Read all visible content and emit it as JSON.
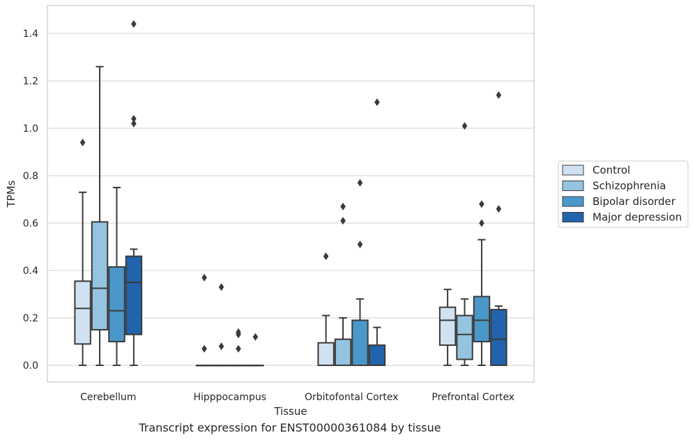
{
  "chart_data": {
    "type": "box",
    "xlabel": "Tissue",
    "ylabel": "TPMs",
    "ylim": [
      -0.07,
      1.52
    ],
    "yticks": [
      0.0,
      0.2,
      0.4,
      0.6,
      0.8,
      1.0,
      1.2,
      1.4
    ],
    "ytick_labels": [
      "0.0",
      "0.2",
      "0.4",
      "0.6",
      "0.8",
      "1.0",
      "1.2",
      "1.4"
    ],
    "grid": true,
    "legend_position": "right",
    "categories": [
      "Cerebellum",
      "Hipppocampus",
      "Orbitofontal Cortex",
      "Prefrontal Cortex"
    ],
    "series": [
      {
        "name": "Control",
        "color": "#d0e1f2",
        "boxes": [
          {
            "whislo": 0.0,
            "q1": 0.09,
            "med": 0.24,
            "q3": 0.355,
            "whishi": 0.73,
            "fliers": [
              0.94
            ]
          },
          {
            "whislo": 0.0,
            "q1": 0.0,
            "med": 0.0,
            "q3": 0.0,
            "whishi": 0.0,
            "fliers": [
              0.07,
              0.37
            ]
          },
          {
            "whislo": 0.0,
            "q1": 0.0,
            "med": 0.0,
            "q3": 0.095,
            "whishi": 0.21,
            "fliers": [
              0.46
            ]
          },
          {
            "whislo": 0.0,
            "q1": 0.085,
            "med": 0.19,
            "q3": 0.245,
            "whishi": 0.32,
            "fliers": []
          }
        ]
      },
      {
        "name": "Schizophrenia",
        "color": "#94c4df",
        "boxes": [
          {
            "whislo": 0.0,
            "q1": 0.15,
            "med": 0.325,
            "q3": 0.605,
            "whishi": 1.26,
            "fliers": []
          },
          {
            "whislo": 0.0,
            "q1": 0.0,
            "med": 0.0,
            "q3": 0.0,
            "whishi": 0.0,
            "fliers": [
              0.08,
              0.33
            ]
          },
          {
            "whislo": 0.0,
            "q1": 0.0,
            "med": 0.0,
            "q3": 0.11,
            "whishi": 0.2,
            "fliers": [
              0.61,
              0.67
            ]
          },
          {
            "whislo": 0.0,
            "q1": 0.025,
            "med": 0.13,
            "q3": 0.21,
            "whishi": 0.28,
            "fliers": [
              1.01
            ]
          }
        ]
      },
      {
        "name": "Bipolar disorder",
        "color": "#4a98c9",
        "boxes": [
          {
            "whislo": 0.0,
            "q1": 0.1,
            "med": 0.23,
            "q3": 0.415,
            "whishi": 0.75,
            "fliers": []
          },
          {
            "whislo": 0.0,
            "q1": 0.0,
            "med": 0.0,
            "q3": 0.0,
            "whishi": 0.0,
            "fliers": [
              0.07,
              0.13,
              0.14
            ]
          },
          {
            "whislo": 0.0,
            "q1": 0.0,
            "med": 0.0,
            "q3": 0.19,
            "whishi": 0.28,
            "fliers": [
              0.51,
              0.77
            ]
          },
          {
            "whislo": 0.0,
            "q1": 0.1,
            "med": 0.19,
            "q3": 0.29,
            "whishi": 0.53,
            "fliers": [
              0.6,
              0.68
            ]
          }
        ]
      },
      {
        "name": "Major depression",
        "color": "#2264ab",
        "boxes": [
          {
            "whislo": 0.0,
            "q1": 0.13,
            "med": 0.35,
            "q3": 0.46,
            "whishi": 0.49,
            "fliers": [
              1.02,
              1.04,
              1.44
            ]
          },
          {
            "whislo": 0.0,
            "q1": 0.0,
            "med": 0.0,
            "q3": 0.0,
            "whishi": 0.0,
            "fliers": [
              0.12
            ]
          },
          {
            "whislo": 0.0,
            "q1": 0.0,
            "med": 0.0,
            "q3": 0.085,
            "whishi": 0.16,
            "fliers": [
              1.11
            ]
          },
          {
            "whislo": 0.0,
            "q1": 0.0,
            "med": 0.11,
            "q3": 0.235,
            "whishi": 0.25,
            "fliers": [
              0.66,
              1.14
            ]
          }
        ]
      }
    ]
  },
  "caption": "Transcript expression for ENST00000361084 by tissue"
}
